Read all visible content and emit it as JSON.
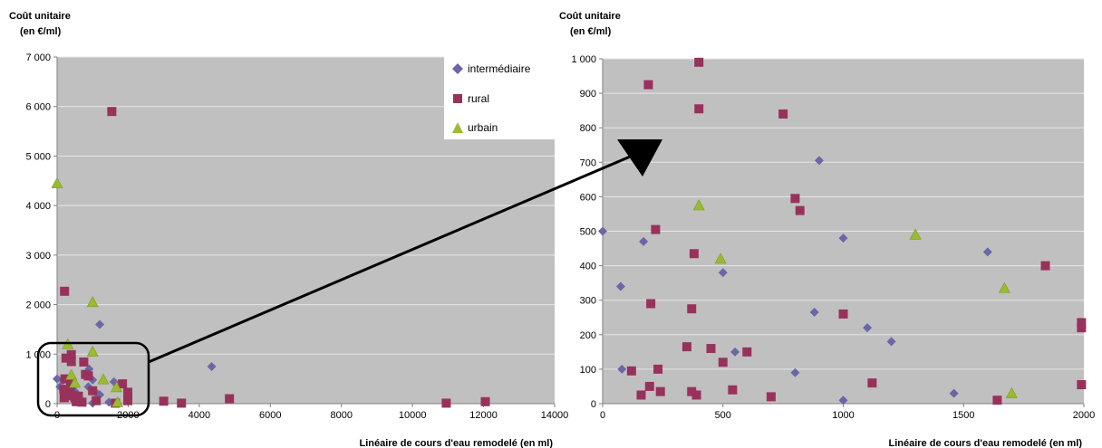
{
  "colors": {
    "plot_bg": "#c0c0c0",
    "grid": "#e6e6e6",
    "intermediaire": "#6a66a8",
    "rural": "#98325c",
    "urbain": "#9bbb30",
    "arrow": "#000000"
  },
  "legend": {
    "items": [
      {
        "label": "intermédiaire",
        "marker": "diamond",
        "color_key": "intermediaire"
      },
      {
        "label": "rural",
        "marker": "square",
        "color_key": "rural"
      },
      {
        "label": "urbain",
        "marker": "triangle",
        "color_key": "urbain"
      }
    ]
  },
  "chart_data": [
    {
      "type": "scatter",
      "title": "",
      "ylabel_lines": [
        "Coût unitaire",
        "(en €/ml)"
      ],
      "xlabel": "Linéaire de cours d'eau remodelé (en ml)",
      "xlim": [
        0,
        14000
      ],
      "ylim": [
        0,
        7000
      ],
      "xticks": [
        0,
        2000,
        4000,
        6000,
        8000,
        10000,
        12000,
        14000
      ],
      "xtick_labels": [
        "0",
        "2000",
        "4000",
        "6000",
        "8000",
        "10000",
        "12000",
        "14000"
      ],
      "yticks": [
        0,
        1000,
        2000,
        3000,
        4000,
        5000,
        6000,
        7000
      ],
      "ytick_labels": [
        "0",
        "1 000",
        "2 000",
        "3 000",
        "4 000",
        "5 000",
        "6 000",
        "7 000"
      ],
      "grid": true,
      "legend_position": "top-right",
      "series": [
        {
          "name": "intermédiaire",
          "marker": "diamond",
          "x": [
            0,
            80,
            170,
            500,
            500,
            880,
            900,
            1000,
            1000,
            1100,
            1200,
            1460,
            1600,
            4350,
            1200,
            300
          ],
          "y": [
            500,
            340,
            470,
            380,
            250,
            340,
            700,
            480,
            10,
            220,
            180,
            30,
            440,
            750,
            1600,
            150
          ]
        },
        {
          "name": "rural",
          "marker": "square",
          "x": [
            190,
            200,
            220,
            370,
            380,
            400,
            450,
            500,
            540,
            600,
            800,
            880,
            1000,
            1100,
            1640,
            1840,
            1990,
            1990,
            1540,
            210,
            750,
            3000,
            3500,
            4850,
            10950,
            12050,
            250,
            400,
            700
          ],
          "y": [
            290,
            120,
            500,
            270,
            440,
            990,
            160,
            120,
            40,
            150,
            590,
            560,
            260,
            60,
            10,
            400,
            230,
            60,
            5900,
            2270,
            840,
            50,
            10,
            100,
            10,
            40,
            920,
            850,
            30
          ]
        },
        {
          "name": "urbain",
          "marker": "triangle",
          "x": [
            0,
            1000,
            300,
            1300,
            1670,
            400,
            500,
            1700,
            1000
          ],
          "y": [
            4450,
            2050,
            1200,
            490,
            330,
            580,
            420,
            30,
            1050
          ]
        }
      ],
      "annotation": "rounded rectangle around 0–2000 ml region, arrow to zoomed chart"
    },
    {
      "type": "scatter",
      "title": "",
      "ylabel_lines": [
        "Coût unitaire",
        "(en €/ml)"
      ],
      "xlabel": "Linéaire de cours d'eau remodelé (en ml)",
      "xlim": [
        0,
        2000
      ],
      "ylim": [
        0,
        1000
      ],
      "xticks": [
        0,
        500,
        1000,
        1500,
        2000
      ],
      "xtick_labels": [
        "0",
        "500",
        "1000",
        "1500",
        "2000"
      ],
      "yticks": [
        0,
        100,
        200,
        300,
        400,
        500,
        600,
        700,
        800,
        900,
        1000
      ],
      "ytick_labels": [
        "0",
        "100",
        "200",
        "300",
        "400",
        "500",
        "600",
        "700",
        "800",
        "900",
        "1 000"
      ],
      "grid": true,
      "series": [
        {
          "name": "intermédiaire",
          "marker": "diamond",
          "x": [
            0,
            75,
            170,
            500,
            880,
            900,
            1000,
            1000,
            1100,
            1200,
            1460,
            1600,
            800,
            550,
            80
          ],
          "y": [
            500,
            340,
            470,
            380,
            265,
            705,
            480,
            10,
            220,
            180,
            30,
            440,
            90,
            150,
            100
          ]
        },
        {
          "name": "rural",
          "marker": "square",
          "x": [
            190,
            200,
            220,
            370,
            380,
            400,
            400,
            450,
            500,
            540,
            600,
            750,
            800,
            820,
            1000,
            1120,
            1640,
            1840,
            1990,
            1990,
            120,
            160,
            195,
            230,
            240,
            350,
            370,
            390,
            700,
            1990
          ],
          "y": [
            925,
            290,
            505,
            275,
            435,
            990,
            855,
            160,
            120,
            40,
            150,
            840,
            595,
            560,
            260,
            60,
            10,
            400,
            235,
            220,
            95,
            25,
            50,
            100,
            35,
            165,
            35,
            25,
            20,
            55
          ]
        },
        {
          "name": "urbain",
          "marker": "triangle",
          "x": [
            400,
            490,
            1300,
            1670,
            1700
          ],
          "y": [
            575,
            420,
            490,
            335,
            30
          ]
        }
      ]
    }
  ]
}
